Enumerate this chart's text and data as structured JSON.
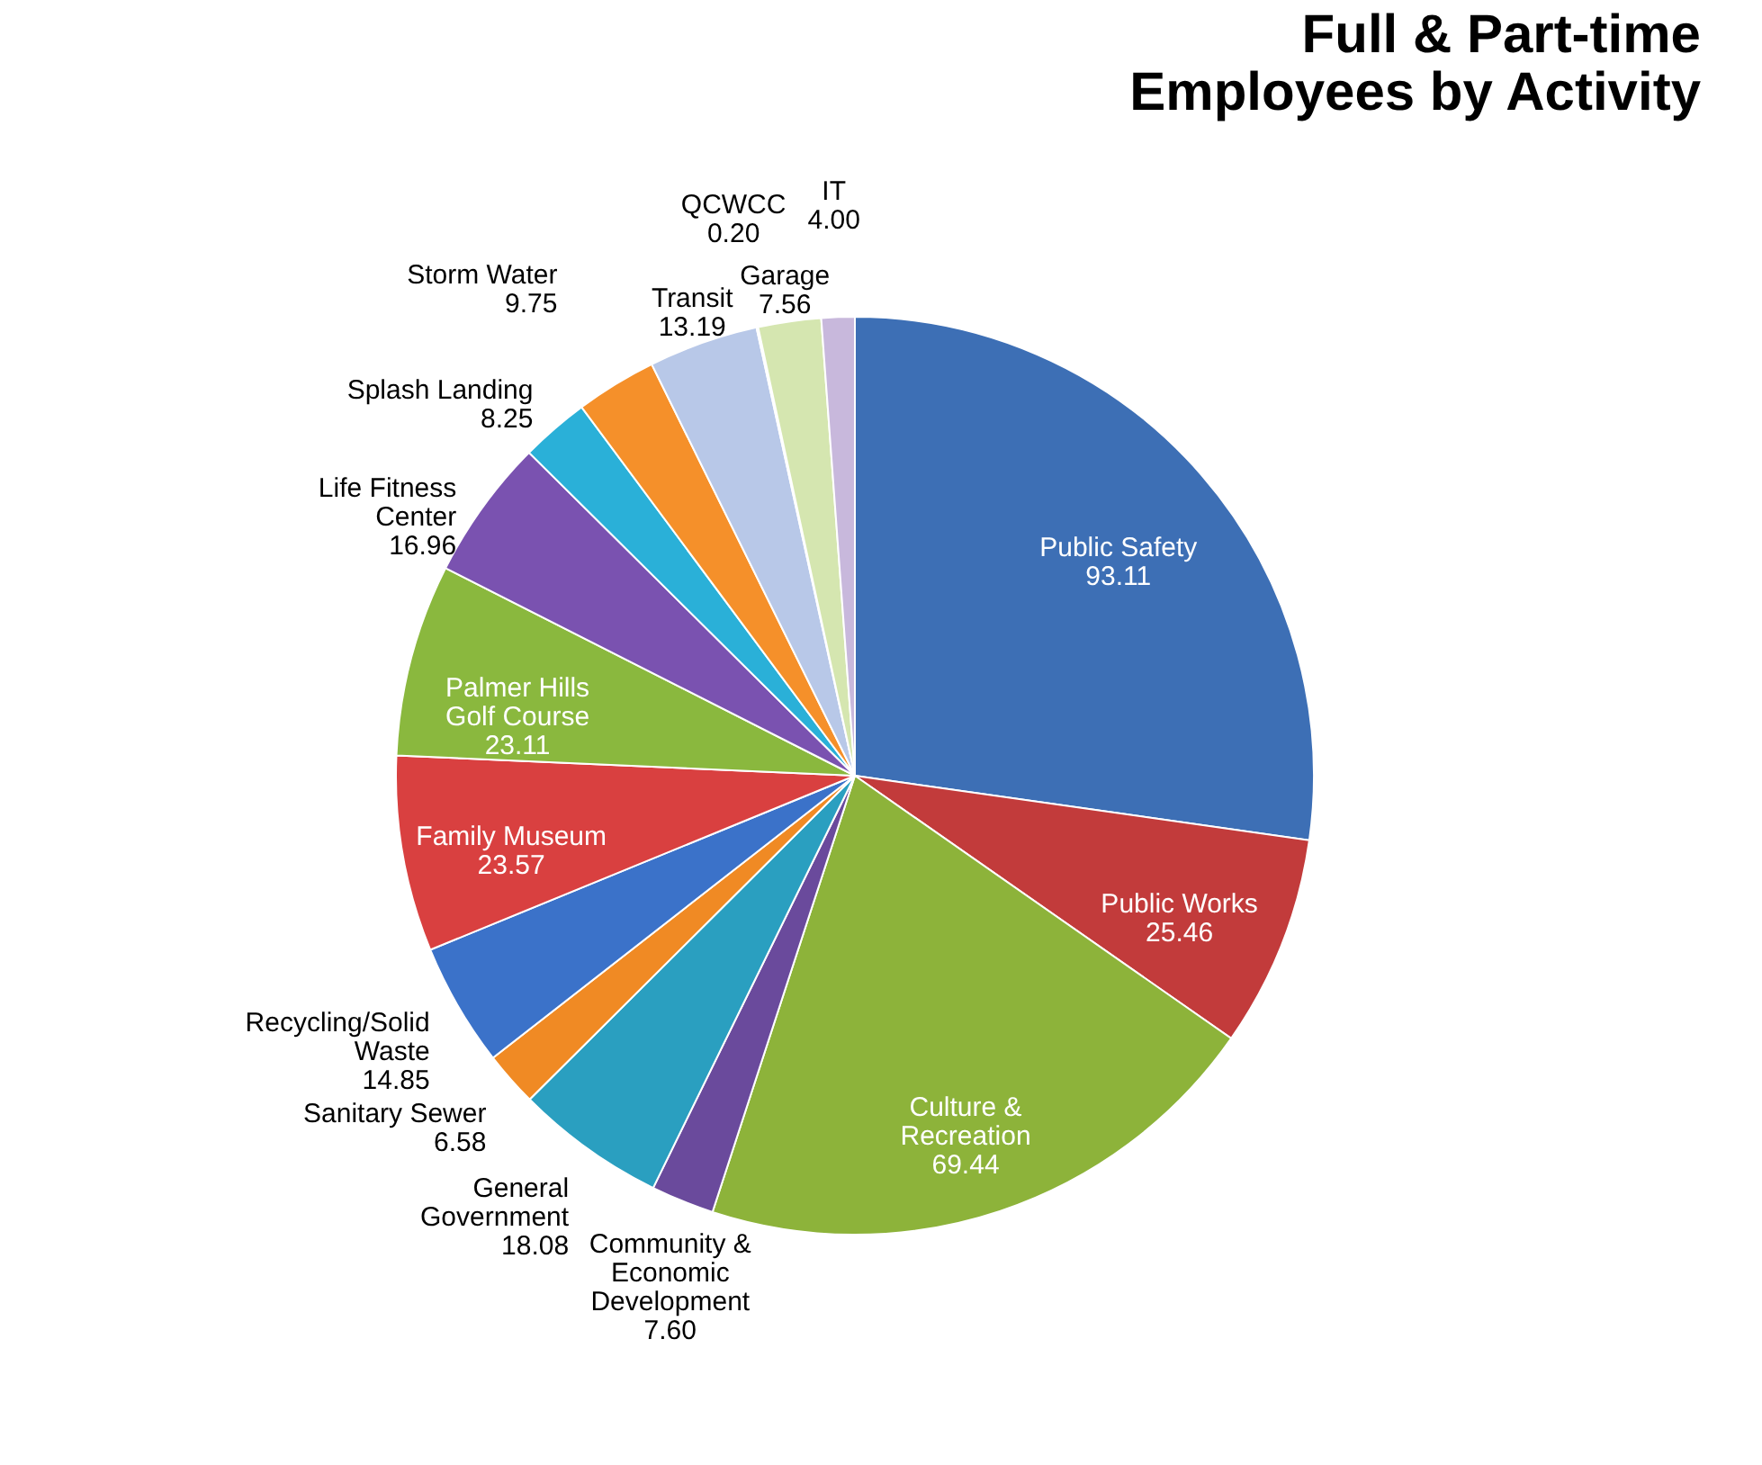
{
  "chart_data": {
    "type": "pie",
    "title": "Full & Part-time Employees by Activity",
    "categories": [
      "Public Safety",
      "Public Works",
      "Culture & Recreation",
      "Community & Economic Development",
      "General Government",
      "Sanitary Sewer",
      "Recycling/Solid Waste",
      "Family Museum",
      "Palmer Hills Golf Course",
      "Life Fitness Center",
      "Splash Landing",
      "Storm Water",
      "Transit",
      "QCWCC",
      "Garage",
      "IT"
    ],
    "values": [
      93.11,
      25.46,
      69.44,
      7.6,
      18.08,
      6.58,
      14.85,
      23.57,
      23.11,
      16.96,
      8.25,
      9.75,
      13.19,
      0.2,
      7.56,
      4.0
    ],
    "value_labels": [
      "93.11",
      "25.46",
      "69.44",
      "7.60",
      "18.08",
      "6.58",
      "14.85",
      "23.57",
      "23.11",
      "16.96",
      "8.25",
      "9.75",
      "13.19",
      "0.20",
      "7.56",
      "4.00"
    ],
    "colors": [
      "#3d6fb5",
      "#c23b3b",
      "#8db33a",
      "#6a4a9c",
      "#2a9fc0",
      "#f08a24",
      "#3b72c9",
      "#d94040",
      "#8ab83e",
      "#7a52b0",
      "#2ab0d8",
      "#f5902a",
      "#b8c8e8",
      "#c0504d",
      "#d5e6b0",
      "#c8b8dc"
    ]
  }
}
